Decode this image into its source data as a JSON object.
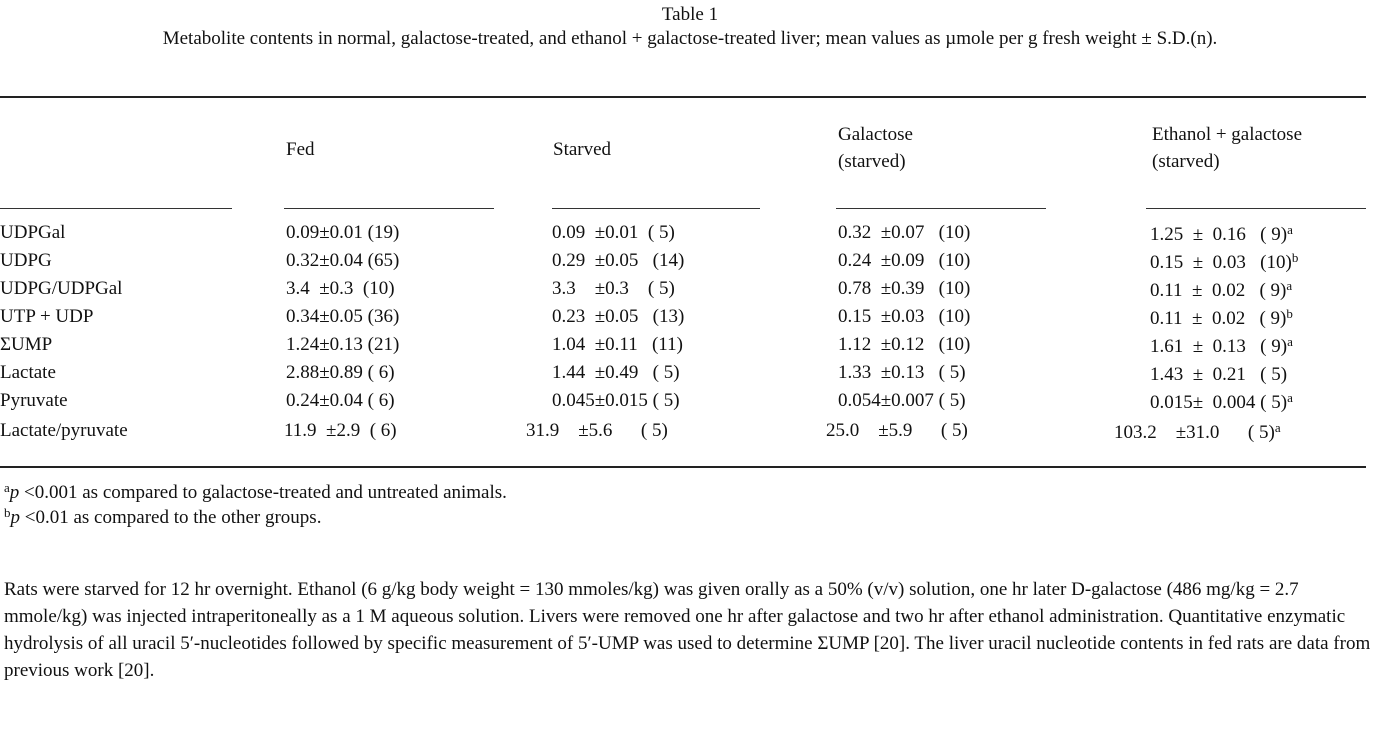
{
  "caption": {
    "number": "Table 1",
    "text": "Metabolite contents in normal, galactose-treated, and ethanol + galactose-treated liver; mean values as µmole per g fresh weight ± S.D.(n)."
  },
  "columns": {
    "fed": "Fed",
    "starved": "Starved",
    "galactose": {
      "line1": "Galactose",
      "line2": "(starved)"
    },
    "ethanol": {
      "line1": "Ethanol + galactose",
      "line2": "(starved)"
    }
  },
  "rows": [
    {
      "label": "UDPGal",
      "fed": "0.09±0.01 (19)",
      "starved": "0.09  ±0.01  ( 5)",
      "galactose": "0.32  ±0.07   (10)",
      "ethanol": "1.25  ±  0.16   ( 9)",
      "sig": "a"
    },
    {
      "label": "UDPG",
      "fed": "0.32±0.04 (65)",
      "starved": "0.29  ±0.05   (14)",
      "galactose": "0.24  ±0.09   (10)",
      "ethanol": "0.15  ±  0.03   (10)",
      "sig": "b"
    },
    {
      "label": "UDPG/UDPGal",
      "fed": "3.4  ±0.3  (10)",
      "starved": "3.3    ±0.3    ( 5)",
      "galactose": "0.78  ±0.39   (10)",
      "ethanol": "0.11  ±  0.02   ( 9)",
      "sig": "a"
    },
    {
      "label": "UTP + UDP",
      "fed": "0.34±0.05 (36)",
      "starved": "0.23  ±0.05   (13)",
      "galactose": "0.15  ±0.03   (10)",
      "ethanol": "0.11  ±  0.02   ( 9)",
      "sig": "b"
    },
    {
      "label": "ΣUMP",
      "fed": "1.24±0.13 (21)",
      "starved": "1.04  ±0.11   (11)",
      "galactose": "1.12  ±0.12   (10)",
      "ethanol": "1.61  ±  0.13   ( 9)",
      "sig": "a"
    },
    {
      "label": "Lactate",
      "fed": "2.88±0.89 ( 6)",
      "starved": "1.44  ±0.49   ( 5)",
      "galactose": "1.33  ±0.13   ( 5)",
      "ethanol": "1.43  ±  0.21   ( 5)",
      "sig": ""
    },
    {
      "label": "Pyruvate",
      "fed": "0.24±0.04 ( 6)",
      "starved": "0.045±0.015 ( 5)",
      "galactose": "0.054±0.007 ( 5)",
      "ethanol": "0.015±  0.004 ( 5)",
      "sig": "a"
    },
    {
      "label": "Lactate/pyruvate",
      "fed": "11.9  ±2.9  ( 6)",
      "starved": "31.9    ±5.6      ( 5)",
      "galactose": "25.0    ±5.9      ( 5)",
      "ethanol": "103.2    ±31.0      ( 5)",
      "sig": "a"
    }
  ],
  "footnotes": {
    "a": {
      "mark": "a",
      "p": "p",
      "text": " <0.001 as compared to galactose-treated and untreated animals."
    },
    "b": {
      "mark": "b",
      "p": "p",
      "text": " <0.01 as compared to the other groups."
    }
  },
  "notes": "Rats were starved for 12 hr overnight. Ethanol (6 g/kg body weight = 130 mmoles/kg) was given orally as a 50% (v/v) solution, one hr later D-galactose (486 mg/kg = 2.7 mmole/kg) was injected intraperitoneally as a 1 M aqueous solution. Livers were removed one hr after galactose and two hr after ethanol administration. Quantitative enzymatic hydrolysis of all uracil 5′-nucleotides followed by specific measurement of 5′-UMP was used to determine ΣUMP [20]. The liver uracil nucleotide contents in fed rats are data from previous work [20]."
}
